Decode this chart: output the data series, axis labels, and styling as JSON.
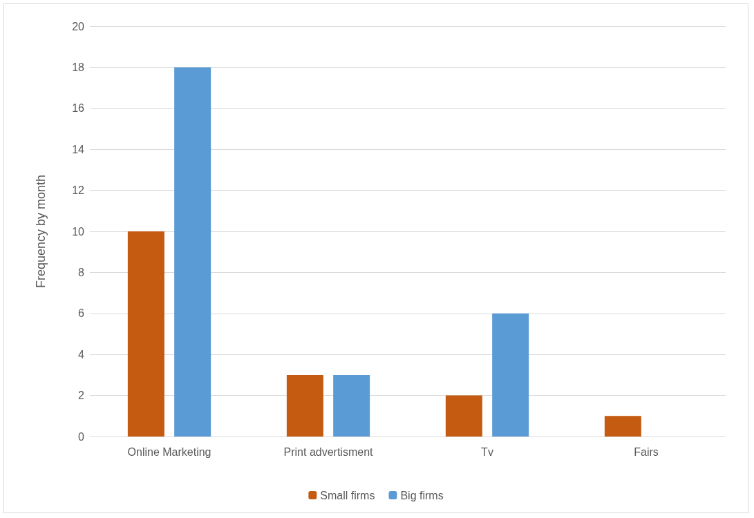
{
  "chart_data": {
    "type": "bar",
    "ylabel": "Frequency by month",
    "categories": [
      "Online Marketing",
      "Print advertisment",
      "Tv",
      "Fairs"
    ],
    "series": [
      {
        "name": "Small firms",
        "color": "#c55a11",
        "values": [
          10,
          3,
          2,
          1
        ]
      },
      {
        "name": "Big firms",
        "color": "#5b9bd5",
        "values": [
          18,
          3,
          6,
          0
        ]
      }
    ],
    "ylim": [
      0,
      20
    ],
    "yticks": [
      0,
      2,
      4,
      6,
      8,
      10,
      12,
      14,
      16,
      18,
      20
    ],
    "grid": "y",
    "legend": "bottom"
  }
}
